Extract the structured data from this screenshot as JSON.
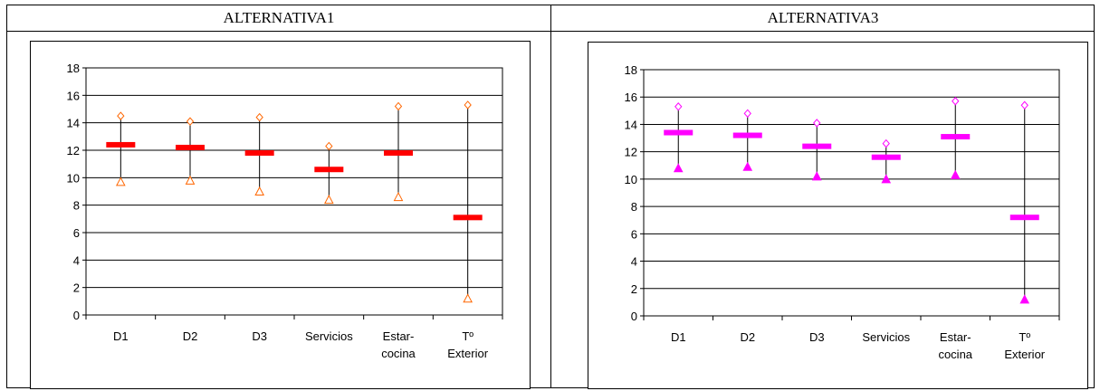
{
  "headers": [
    "ALTERNATIVA1",
    "ALTERNATIVA3"
  ],
  "chart_data": [
    {
      "type": "stock",
      "title": "ALTERNATIVA1",
      "categories": [
        "D1",
        "D2",
        "D3",
        "Servicios",
        "Estar-cocina",
        "Tº Exterior"
      ],
      "category_lines": [
        [
          "D1"
        ],
        [
          "D2"
        ],
        [
          "D3"
        ],
        [
          "Servicios"
        ],
        [
          "Estar-",
          "cocina"
        ],
        [
          "Tº",
          "Exterior"
        ]
      ],
      "ylim": [
        0,
        18
      ],
      "yticks": [
        0,
        2,
        4,
        6,
        8,
        10,
        12,
        14,
        16,
        18
      ],
      "grid": true,
      "high": [
        14.5,
        14.1,
        14.4,
        12.3,
        15.2,
        15.3
      ],
      "low": [
        9.7,
        9.8,
        9.0,
        8.4,
        8.6,
        1.2
      ],
      "mean": [
        12.4,
        12.2,
        11.8,
        10.6,
        11.8,
        7.1
      ],
      "colors": {
        "mean": "#ff0000",
        "high": "#ff6600",
        "low": "#ff6600"
      },
      "low_marker": "open-triangle"
    },
    {
      "type": "stock",
      "title": "ALTERNATIVA3",
      "categories": [
        "D1",
        "D2",
        "D3",
        "Servicios",
        "Estar-cocina",
        "Tº Exterior"
      ],
      "category_lines": [
        [
          "D1"
        ],
        [
          "D2"
        ],
        [
          "D3"
        ],
        [
          "Servicios"
        ],
        [
          "Estar-",
          "cocina"
        ],
        [
          "Tº",
          "Exterior"
        ]
      ],
      "ylim": [
        0,
        18
      ],
      "yticks": [
        0,
        2,
        4,
        6,
        8,
        10,
        12,
        14,
        16,
        18
      ],
      "grid": true,
      "high": [
        15.3,
        14.8,
        14.1,
        12.6,
        15.7,
        15.4
      ],
      "low": [
        10.8,
        10.9,
        10.2,
        10.0,
        10.3,
        1.2
      ],
      "mean": [
        13.4,
        13.2,
        12.4,
        11.6,
        13.1,
        7.2
      ],
      "colors": {
        "mean": "#ff00ff",
        "high": "#ff00ff",
        "low": "#ff00ff"
      },
      "low_marker": "filled-triangle"
    }
  ]
}
